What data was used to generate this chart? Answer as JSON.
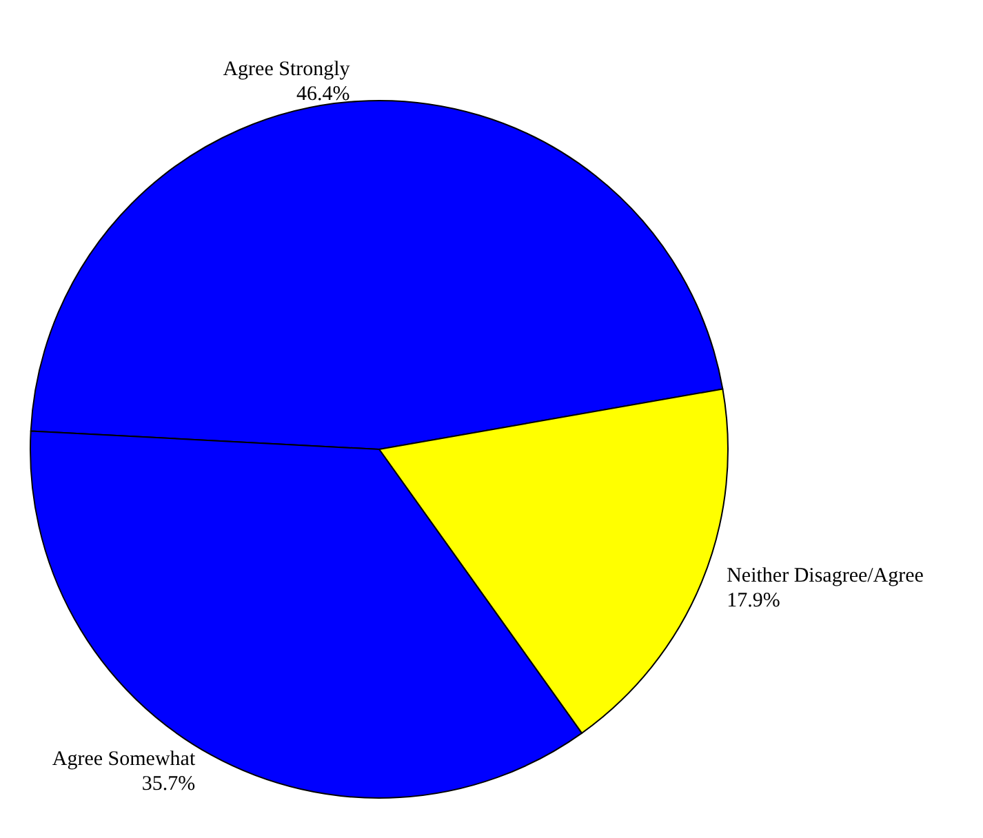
{
  "chart_data": {
    "type": "pie",
    "categories": [
      "Agree Strongly",
      "Neither Disagree/Agree",
      "Agree Somewhat"
    ],
    "values": [
      46.4,
      17.9,
      35.7
    ],
    "colors": [
      "#0000ff",
      "#ffff00",
      "#0000ff"
    ],
    "value_labels": [
      "46.4%",
      "17.9%",
      "35.7%"
    ],
    "legend": false
  }
}
